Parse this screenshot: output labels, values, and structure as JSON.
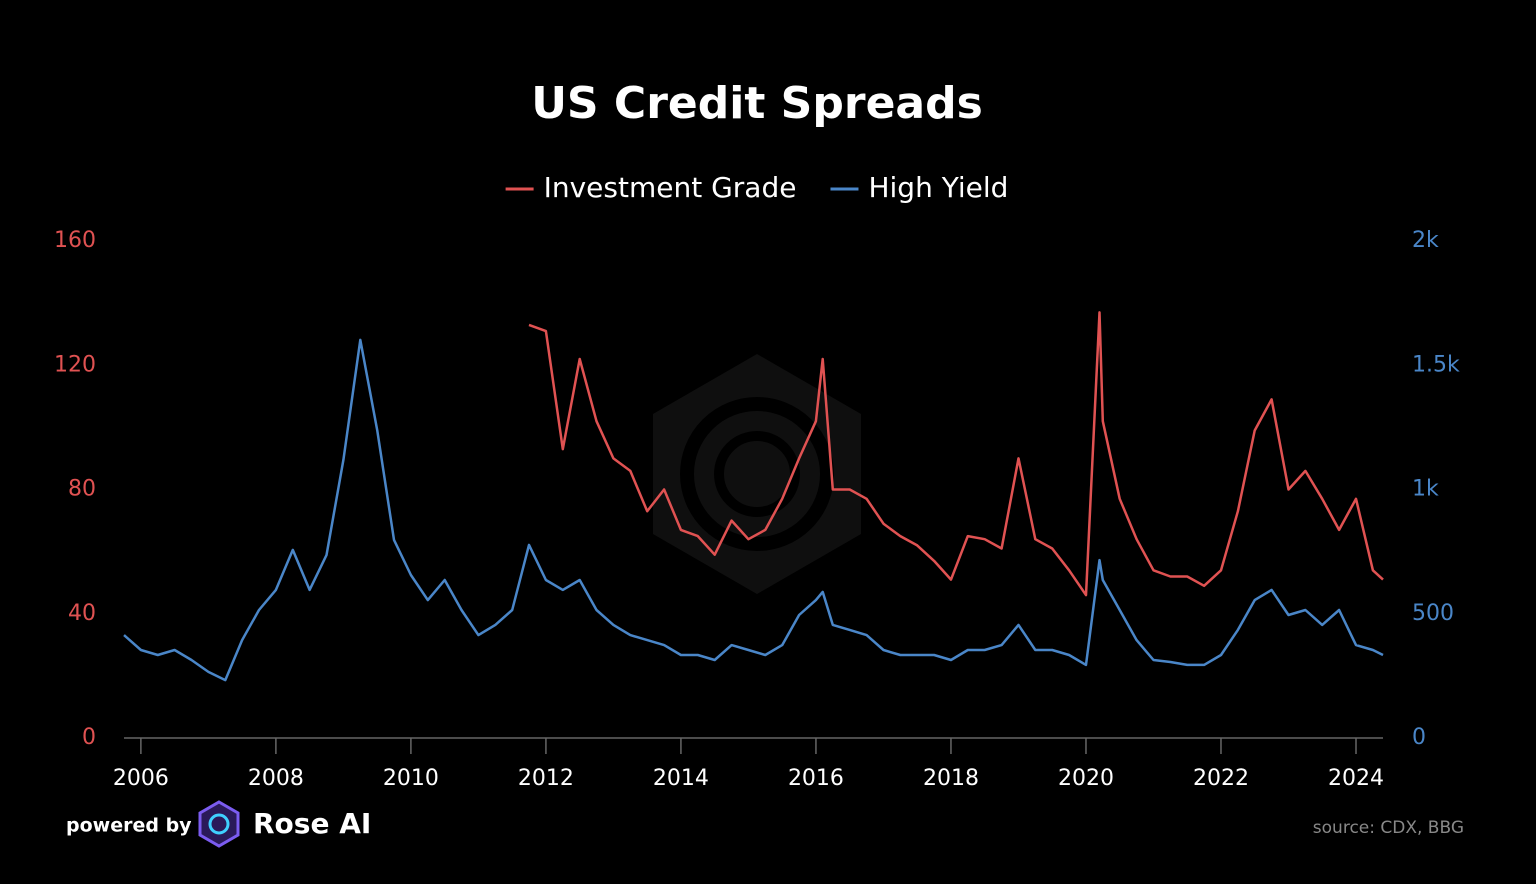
{
  "chart_data": {
    "type": "line",
    "title": "US Credit Spreads",
    "legend": "top",
    "x": [
      2005.75,
      2006,
      2006.25,
      2006.5,
      2006.75,
      2007,
      2007.25,
      2007.5,
      2007.75,
      2008,
      2008.25,
      2008.5,
      2008.75,
      2009,
      2009.25,
      2009.5,
      2009.75,
      2010,
      2010.25,
      2010.5,
      2010.75,
      2011,
      2011.25,
      2011.5,
      2011.75,
      2012,
      2012.25,
      2012.5,
      2012.75,
      2013,
      2013.25,
      2013.5,
      2013.75,
      2014,
      2014.25,
      2014.5,
      2014.75,
      2015,
      2015.25,
      2015.5,
      2015.75,
      2016,
      2016.1,
      2016.25,
      2016.5,
      2016.75,
      2017,
      2017.25,
      2017.5,
      2017.75,
      2018,
      2018.25,
      2018.5,
      2018.75,
      2019,
      2019.25,
      2019.5,
      2019.75,
      2020,
      2020.2,
      2020.25,
      2020.5,
      2020.75,
      2021,
      2021.25,
      2021.5,
      2021.75,
      2022,
      2022.25,
      2022.5,
      2022.75,
      2023,
      2023.25,
      2023.5,
      2023.75,
      2024,
      2024.25,
      2024.4
    ],
    "series": [
      {
        "name": "Investment Grade",
        "color": "#e05252",
        "axis": "y",
        "values": [
          null,
          null,
          null,
          null,
          null,
          null,
          null,
          null,
          null,
          null,
          null,
          null,
          null,
          null,
          null,
          null,
          null,
          null,
          null,
          null,
          null,
          null,
          null,
          null,
          133,
          131,
          93,
          122,
          102,
          90,
          86,
          73,
          80,
          67,
          65,
          59,
          70,
          64,
          67,
          77,
          90,
          102,
          122,
          80,
          80,
          77,
          69,
          65,
          62,
          57,
          51,
          65,
          64,
          61,
          90,
          64,
          61,
          54,
          46,
          137,
          102,
          77,
          64,
          54,
          52,
          52,
          49,
          54,
          73,
          99,
          109,
          80,
          86,
          77,
          67,
          77,
          54,
          51
        ]
      },
      {
        "name": "High Yield",
        "color": "#4a86c8",
        "axis": "y2",
        "values": [
          414,
          354,
          334,
          354,
          314,
          266,
          233,
          394,
          515,
          596,
          757,
          596,
          736,
          1119,
          1602,
          1239,
          797,
          656,
          555,
          636,
          515,
          414,
          455,
          515,
          777,
          636,
          596,
          636,
          515,
          455,
          414,
          394,
          374,
          334,
          334,
          314,
          374,
          354,
          334,
          374,
          495,
          555,
          588,
          455,
          435,
          414,
          354,
          334,
          334,
          334,
          314,
          354,
          354,
          374,
          455,
          354,
          354,
          334,
          294,
          716,
          636,
          515,
          394,
          314,
          306,
          294,
          294,
          334,
          435,
          555,
          596,
          495,
          515,
          455,
          515,
          374,
          354,
          334
        ]
      }
    ],
    "xlim": [
      2005.75,
      2024.4
    ],
    "xticks": [
      2006,
      2008,
      2010,
      2012,
      2014,
      2016,
      2018,
      2020,
      2022,
      2024
    ],
    "ylim": [
      0,
      160
    ],
    "yticks": [
      0,
      40,
      80,
      120,
      160
    ],
    "y2lim": [
      0,
      2000
    ],
    "y2ticks": [
      0,
      500,
      {
        "value": 1000,
        "label": "1k"
      },
      {
        "value": 1500,
        "label": "1.5k"
      },
      {
        "value": 2000,
        "label": "2k"
      }
    ],
    "grid": false
  },
  "footer": {
    "powered": "powered by",
    "brand": "Rose AI",
    "source": "source: CDX, BBG"
  }
}
